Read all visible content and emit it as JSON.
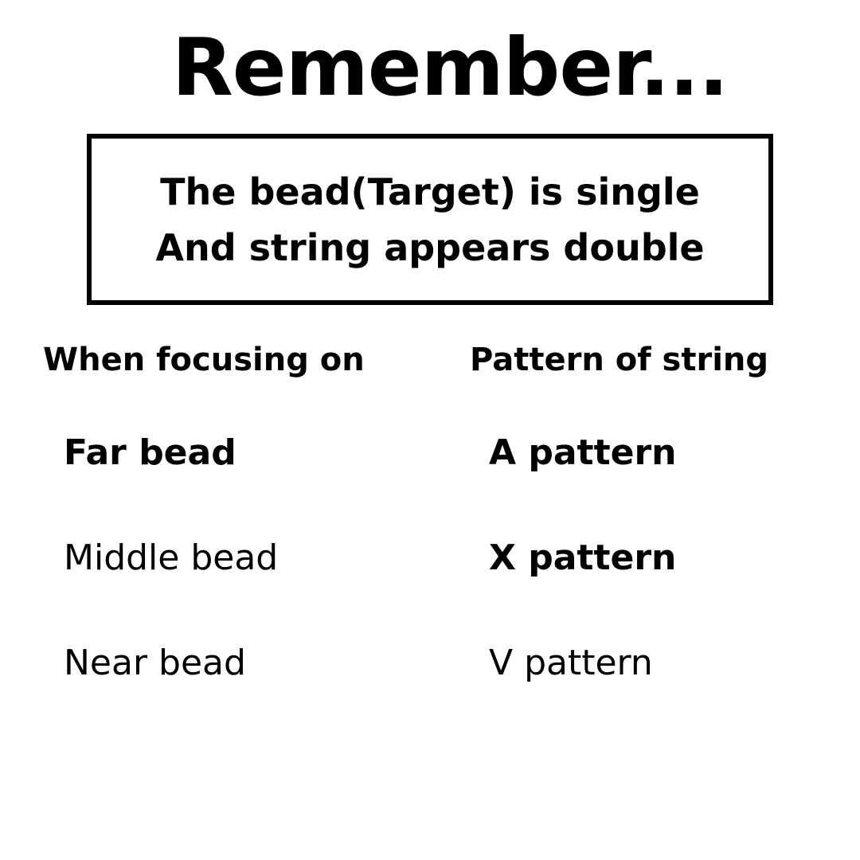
{
  "title": "Remember...",
  "note_box": {
    "line1": "The bead(Target) is single",
    "line2": "And string appears double"
  },
  "table": {
    "headers": [
      "When focusing on",
      "Pattern of string"
    ],
    "rows": [
      [
        "Far bead",
        "A pattern"
      ],
      [
        "Middle bead",
        "X pattern"
      ],
      [
        "Near bead",
        "V pattern"
      ]
    ]
  }
}
